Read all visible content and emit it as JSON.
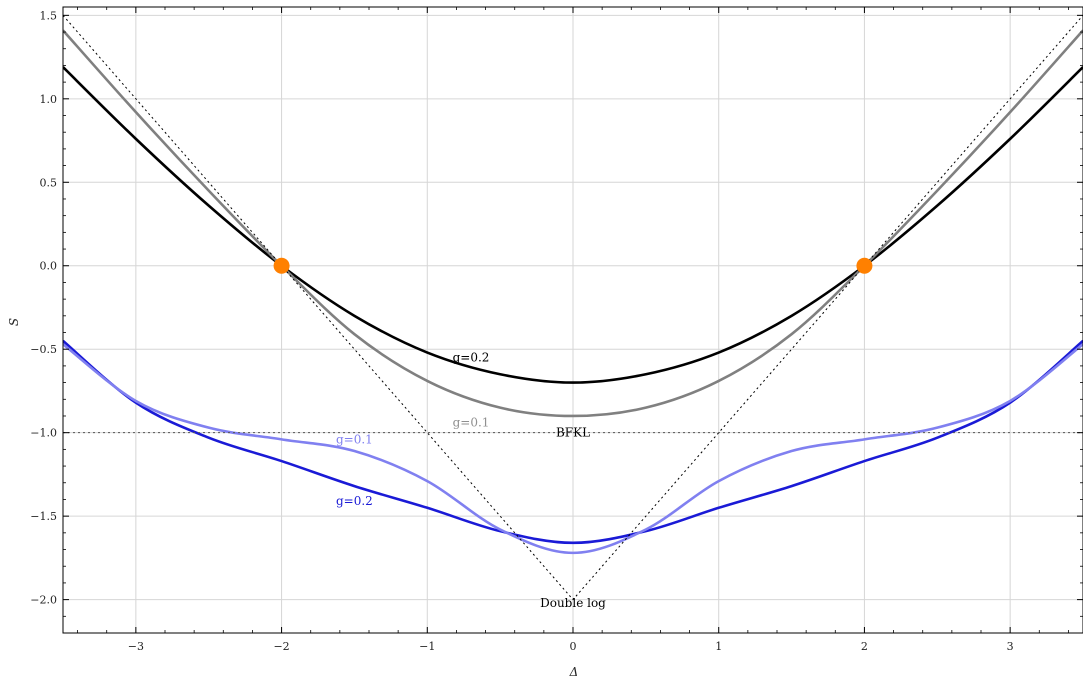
{
  "chart_data": {
    "type": "line",
    "xlabel": "Δ",
    "ylabel": "S",
    "xlim": [
      -3.5,
      3.5
    ],
    "ylim": [
      -2.2,
      1.55
    ],
    "grid": true,
    "x_ticks": [
      -3,
      -2,
      -1,
      0,
      1,
      2,
      3
    ],
    "x_tick_labels": [
      "−3",
      "−2",
      "−1",
      "0",
      "1",
      "2",
      "3"
    ],
    "y_ticks": [
      -2.0,
      -1.5,
      -1.0,
      -0.5,
      0.0,
      0.5,
      1.0,
      1.5
    ],
    "y_tick_labels": [
      "−2.0",
      "−1.5",
      "−1.0",
      "−0.5",
      "0.0",
      "0.5",
      "1.0",
      "1.5"
    ],
    "series": [
      {
        "name": "black-upper",
        "color": "#000000",
        "x": [
          -3.5,
          -3,
          -2.5,
          -2,
          -1.5,
          -1,
          -0.5,
          0,
          0.5,
          1,
          1.5,
          2,
          2.5,
          3,
          3.5
        ],
        "values": [
          1.19,
          0.76,
          0.36,
          0.0,
          -0.3,
          -0.52,
          -0.65,
          -0.7,
          -0.65,
          -0.52,
          -0.3,
          0.0,
          0.36,
          0.76,
          1.19
        ]
      },
      {
        "name": "gray-upper",
        "color": "#808080",
        "x": [
          -3.5,
          -3,
          -2.5,
          -2,
          -1.5,
          -1,
          -0.5,
          0,
          0.5,
          1,
          1.5,
          2,
          2.5,
          3,
          3.5
        ],
        "values": [
          1.41,
          0.92,
          0.45,
          0.0,
          -0.41,
          -0.69,
          -0.85,
          -0.9,
          -0.85,
          -0.69,
          -0.41,
          0.0,
          0.45,
          0.92,
          1.41
        ]
      },
      {
        "name": "blue-lower",
        "color": "#1a1ad6",
        "x": [
          -3.5,
          -3,
          -2.5,
          -2,
          -1.5,
          -1,
          -0.5,
          0,
          0.5,
          1,
          1.5,
          2,
          2.5,
          3,
          3.5
        ],
        "values": [
          -0.45,
          -0.82,
          -1.03,
          -1.17,
          -1.32,
          -1.45,
          -1.59,
          -1.66,
          -1.59,
          -1.45,
          -1.32,
          -1.17,
          -1.03,
          -0.82,
          -0.45
        ]
      },
      {
        "name": "lightblue-lower",
        "color": "#8080f0",
        "x": [
          -3.5,
          -3,
          -2.5,
          -2,
          -1.5,
          -1,
          -0.5,
          0,
          0.5,
          1,
          1.5,
          2,
          2.5,
          3,
          3.5
        ],
        "values": [
          -0.47,
          -0.81,
          -0.97,
          -1.04,
          -1.11,
          -1.29,
          -1.58,
          -1.72,
          -1.58,
          -1.29,
          -1.11,
          -1.04,
          -0.97,
          -0.81,
          -0.47
        ]
      },
      {
        "name": "double-log",
        "color": "#000000",
        "dashed": true,
        "x": [
          -3.5,
          0,
          3.5
        ],
        "values": [
          1.5,
          -2.0,
          1.5
        ]
      },
      {
        "name": "bfkl",
        "color": "#555555",
        "dashed": true,
        "x": [
          -3.5,
          3.5
        ],
        "values": [
          -1.0,
          -1.0
        ]
      }
    ],
    "points": [
      {
        "x": -2,
        "y": 0,
        "color": "#ff8000"
      },
      {
        "x": 2,
        "y": 0,
        "color": "#ff8000"
      }
    ],
    "annotations": [
      {
        "text": "g=0.2",
        "x": -0.7,
        "y": -0.55,
        "color": "#000000"
      },
      {
        "text": "g=0.1",
        "x": -0.7,
        "y": -0.94,
        "color": "#909090"
      },
      {
        "text": "BFKL",
        "x": 0,
        "y": -1.0,
        "color": "#000000"
      },
      {
        "text": "g=0.1",
        "x": -1.5,
        "y": -1.04,
        "color": "#8080f0"
      },
      {
        "text": "g=0.2",
        "x": -1.5,
        "y": -1.41,
        "color": "#1a1ad6"
      },
      {
        "text": "Double log",
        "x": 0,
        "y": -2.02,
        "color": "#000000"
      }
    ]
  }
}
